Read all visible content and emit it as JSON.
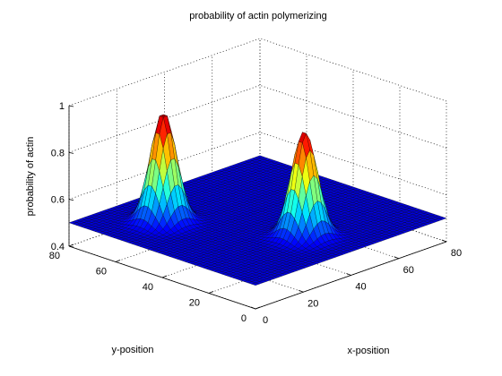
{
  "chart_data": {
    "type": "surface",
    "title": "probability of actin polymerizing",
    "xlabel": "x-position",
    "ylabel": "y-position",
    "zlabel": "probability of actin",
    "xlim": [
      0,
      80
    ],
    "ylim": [
      0,
      80
    ],
    "zlim": [
      0.4,
      1
    ],
    "x_ticks": [
      "0",
      "20",
      "40",
      "60",
      "80"
    ],
    "y_ticks": [
      "0",
      "20",
      "40",
      "60",
      "80"
    ],
    "z_ticks": [
      "0.4",
      "0.6",
      "0.8",
      "1"
    ],
    "grid": true,
    "colormap": "jet",
    "baseline": 0.5,
    "peaks": [
      {
        "x": 40,
        "y": 20,
        "height": 0.95,
        "sigma": 4
      },
      {
        "x": 20,
        "y": 60,
        "height": 0.97,
        "sigma": 4
      }
    ],
    "surface_min": 0.5,
    "surface_max": 0.97
  },
  "colors": {
    "low": "#00008f",
    "high": "#800000",
    "edge": "#000000",
    "background": "#ffffff"
  }
}
